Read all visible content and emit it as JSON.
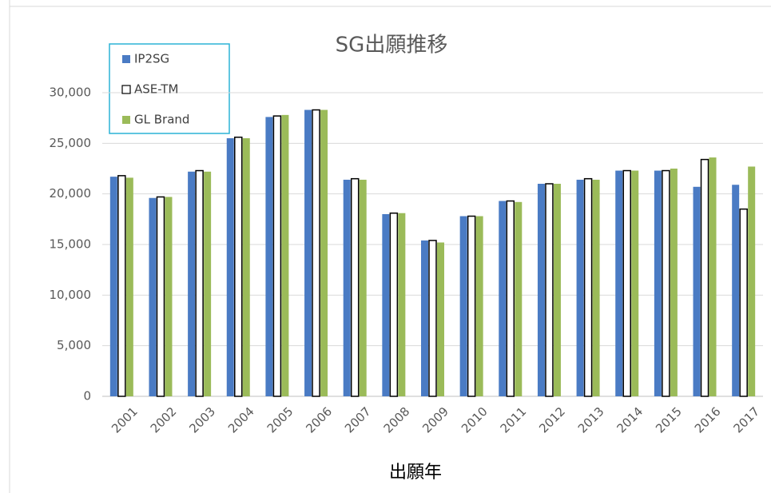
{
  "chart_data": {
    "type": "bar",
    "title": "SG出願推移",
    "x_label": "出願年",
    "categories": [
      "2001",
      "2002",
      "2003",
      "2004",
      "2005",
      "2006",
      "2007",
      "2008",
      "2009",
      "2010",
      "2011",
      "2012",
      "2013",
      "2014",
      "2015",
      "2016",
      "2017"
    ],
    "series": [
      {
        "name": "IP2SG",
        "color": "#4a7bc4",
        "values": [
          21700,
          19600,
          22200,
          25500,
          27600,
          28300,
          21400,
          18000,
          15400,
          17800,
          19300,
          21000,
          21400,
          22300,
          22300,
          20700,
          20900
        ]
      },
      {
        "name": "ASE-TM",
        "color": "#ffffff",
        "values": [
          21800,
          19700,
          22300,
          25600,
          27700,
          28300,
          21500,
          18100,
          15400,
          17800,
          19300,
          21000,
          21500,
          22300,
          22300,
          23400,
          18500
        ]
      },
      {
        "name": "GL Brand",
        "color": "#9bbb59",
        "values": [
          21600,
          19700,
          22200,
          25500,
          27800,
          28300,
          21400,
          18100,
          15200,
          17800,
          19200,
          21000,
          21400,
          22300,
          22500,
          23600,
          22700
        ]
      }
    ],
    "ylim": [
      0,
      30000
    ],
    "yticks": [
      0,
      {
        "value": 5000,
        "label": "5,000"
      },
      {
        "value": 10000,
        "label": "10,000"
      },
      {
        "value": 15000,
        "label": "15,000"
      },
      {
        "value": 20000,
        "label": "20,000"
      },
      {
        "value": 25000,
        "label": "25,000"
      },
      {
        "value": 30000,
        "label": "30,000"
      }
    ],
    "grid": true,
    "legend": "top-left"
  }
}
